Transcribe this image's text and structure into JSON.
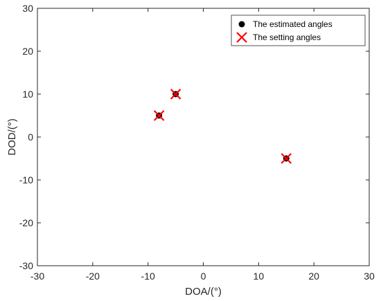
{
  "chart_data": {
    "type": "scatter",
    "xlabel": "DOA/(°)",
    "ylabel": "DOD/(°)",
    "xlim": [
      -30,
      30
    ],
    "ylim": [
      -30,
      30
    ],
    "xticks": [
      -30,
      -20,
      -10,
      0,
      10,
      20,
      30
    ],
    "yticks": [
      -30,
      -20,
      -10,
      0,
      10,
      20,
      30
    ],
    "grid": false,
    "legend_position": "top-right",
    "series": [
      {
        "name": "The estimated angles",
        "marker": "filled-circle",
        "color": "#000000",
        "points": [
          [
            -5,
            10
          ],
          [
            -8,
            5
          ],
          [
            15,
            -5
          ]
        ]
      },
      {
        "name": "The setting angles",
        "marker": "x",
        "color": "#ff0000",
        "points": [
          [
            -5,
            10
          ],
          [
            -8,
            5
          ],
          [
            15,
            -5
          ]
        ]
      }
    ]
  }
}
